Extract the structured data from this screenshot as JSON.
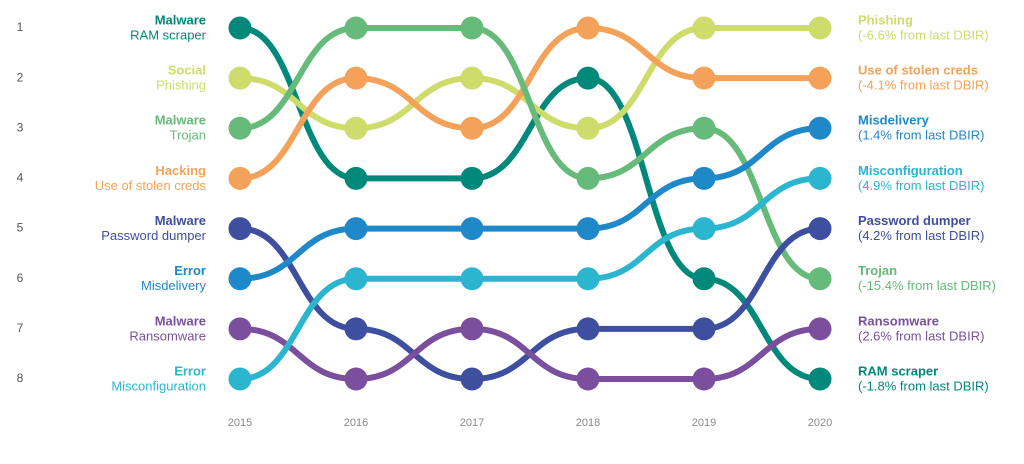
{
  "chart_data": {
    "type": "bump",
    "categories": [
      "2015",
      "2016",
      "2017",
      "2018",
      "2019",
      "2020"
    ],
    "ylim": [
      1,
      8
    ],
    "yticks": [
      1,
      2,
      3,
      4,
      5,
      6,
      7,
      8
    ],
    "y_reversed": true,
    "series": [
      {
        "group": "Malware",
        "name": "RAM scraper",
        "change": "(-1.8% from last DBIR)",
        "color": "#00897b",
        "values": [
          1,
          4,
          4,
          2,
          6,
          8
        ]
      },
      {
        "group": "Social",
        "name": "Phishing",
        "change": "(-6.6% from last DBIR)",
        "color": "#cddc6a",
        "values": [
          2,
          3,
          2,
          3,
          1,
          1
        ]
      },
      {
        "group": "Hacking",
        "name": "Use of stolen creds",
        "change": "(-4.1% from last DBIR)",
        "color": "#f4a259",
        "values": [
          4,
          2,
          3,
          1,
          2,
          2
        ]
      },
      {
        "group": "Malware",
        "name": "Trojan",
        "change": "(-15.4% from last DBIR)",
        "color": "#66bb7a",
        "values": [
          3,
          1,
          1,
          4,
          3,
          6
        ]
      },
      {
        "group": "Malware",
        "name": "Password dumper",
        "change": "(4.2% from last DBIR)",
        "color": "#3f4fa0",
        "values": [
          5,
          7,
          8,
          7,
          7,
          5
        ]
      },
      {
        "group": "Error",
        "name": "Misdelivery",
        "change": "(1.4% from last DBIR)",
        "color": "#1e88c9",
        "values": [
          6,
          5,
          5,
          5,
          4,
          3
        ]
      },
      {
        "group": "Malware",
        "name": "Ransomware",
        "change": "(2.6% from last DBIR)",
        "color": "#7b4f9d",
        "values": [
          7,
          8,
          7,
          8,
          8,
          7
        ]
      },
      {
        "group": "Error",
        "name": "Misconfiguration",
        "change": "(4.9% from last DBIR)",
        "color": "#2cb5cf",
        "values": [
          8,
          6,
          6,
          6,
          5,
          4
        ]
      }
    ]
  }
}
